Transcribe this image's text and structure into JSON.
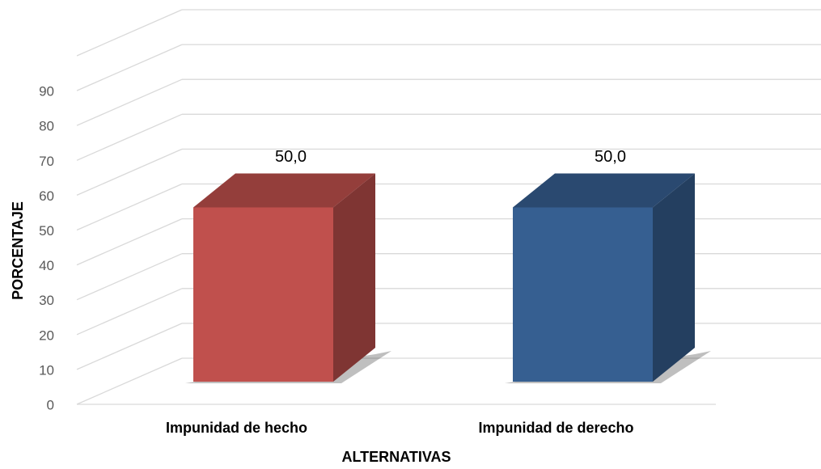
{
  "chart_data": {
    "type": "bar3d",
    "categories": [
      "Impunidad de hecho",
      "Impunidad de derecho"
    ],
    "values": [
      50,
      50
    ],
    "value_labels": [
      "50,0",
      "50,0"
    ],
    "colors": [
      "#c0504d",
      "#365f91"
    ],
    "x_label": "ALTERNATIVAS",
    "y_label": "PORCENTAJE",
    "ylim": [
      0,
      100
    ],
    "yticks": [
      0,
      10,
      20,
      30,
      40,
      50,
      60,
      70,
      80,
      90
    ],
    "grid": true
  }
}
